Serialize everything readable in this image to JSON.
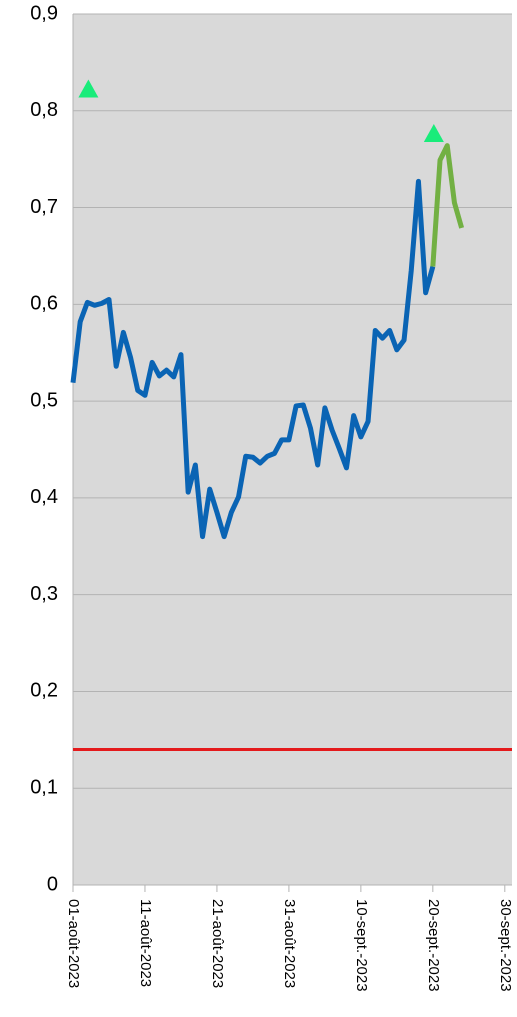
{
  "chart_data": {
    "type": "line",
    "x": [
      "2023-08-01",
      "2023-08-02",
      "2023-08-03",
      "2023-08-04",
      "2023-08-05",
      "2023-08-06",
      "2023-08-07",
      "2023-08-08",
      "2023-08-09",
      "2023-08-10",
      "2023-08-11",
      "2023-08-12",
      "2023-08-13",
      "2023-08-14",
      "2023-08-15",
      "2023-08-16",
      "2023-08-17",
      "2023-08-18",
      "2023-08-19",
      "2023-08-20",
      "2023-08-21",
      "2023-08-22",
      "2023-08-23",
      "2023-08-24",
      "2023-08-25",
      "2023-08-26",
      "2023-08-27",
      "2023-08-28",
      "2023-08-29",
      "2023-08-30",
      "2023-08-31",
      "2023-09-01",
      "2023-09-02",
      "2023-09-03",
      "2023-09-04",
      "2023-09-05",
      "2023-09-06",
      "2023-09-07",
      "2023-09-08",
      "2023-09-09",
      "2023-09-10",
      "2023-09-11",
      "2023-09-12",
      "2023-09-13",
      "2023-09-14",
      "2023-09-15",
      "2023-09-16",
      "2023-09-17",
      "2023-09-18",
      "2023-09-19",
      "2023-09-20",
      "2023-09-21",
      "2023-09-22",
      "2023-09-23",
      "2023-09-24"
    ],
    "series": [
      {
        "type": "line",
        "color": "#0a64b4",
        "values": [
          0.519,
          0.582,
          0.602,
          0.599,
          0.601,
          0.605,
          0.536,
          0.571,
          0.545,
          0.511,
          0.506,
          0.54,
          0.526,
          0.532,
          0.525,
          0.548,
          0.406,
          0.434,
          0.36,
          0.409,
          0.385,
          0.36,
          0.385,
          0.401,
          0.443,
          0.442,
          0.436,
          0.443,
          0.446,
          0.46,
          0.46,
          0.495,
          0.496,
          0.472,
          0.434,
          0.493,
          0.47,
          0.451,
          0.431,
          0.485,
          0.463,
          0.479,
          0.573,
          0.565,
          0.573,
          0.553,
          0.563,
          0.635,
          0.727,
          0.612,
          0.639,
          null,
          null,
          null,
          null
        ]
      },
      {
        "type": "line",
        "color": "#72b043",
        "values": [
          null,
          null,
          null,
          null,
          null,
          null,
          null,
          null,
          null,
          null,
          null,
          null,
          null,
          null,
          null,
          null,
          null,
          null,
          null,
          null,
          null,
          null,
          null,
          null,
          null,
          null,
          null,
          null,
          null,
          null,
          null,
          null,
          null,
          null,
          null,
          null,
          null,
          null,
          null,
          null,
          null,
          null,
          null,
          null,
          null,
          null,
          null,
          null,
          null,
          null,
          0.639,
          0.749,
          0.764,
          0.705,
          0.679
        ]
      },
      {
        "type": "scatter",
        "marker": "triangle",
        "color": "#19ec7a",
        "values": [
          null,
          null,
          0.822,
          null,
          null,
          null,
          null,
          null,
          null,
          null,
          null,
          null,
          null,
          null,
          null,
          null,
          null,
          null,
          null,
          null,
          null,
          null,
          null,
          null,
          null,
          null,
          null,
          null,
          null,
          null,
          null,
          null,
          null,
          null,
          null,
          null,
          null,
          null,
          null,
          null,
          null,
          null,
          null,
          null,
          null,
          null,
          null,
          null,
          null,
          null,
          0.776,
          null,
          null,
          null,
          null
        ]
      }
    ],
    "hline": {
      "value": 0.14,
      "color": "#e41a1c"
    },
    "xlim": [
      "2023-08-01",
      "2023-10-01"
    ],
    "xticks": [
      {
        "value": "2023-08-01",
        "label": "01-août-2023"
      },
      {
        "value": "2023-08-11",
        "label": "11-août-2023"
      },
      {
        "value": "2023-08-21",
        "label": "21-août-2023"
      },
      {
        "value": "2023-08-31",
        "label": "31-août-2023"
      },
      {
        "value": "2023-09-10",
        "label": "10-sept.-2023"
      },
      {
        "value": "2023-09-20",
        "label": "20-sept.-2023"
      },
      {
        "value": "2023-09-30",
        "label": "30-sept.-2023"
      }
    ],
    "ylim": [
      0,
      0.9
    ],
    "yticks": [
      0,
      {
        "value": 0.1,
        "label": "0,1"
      },
      {
        "value": 0.2,
        "label": "0,2"
      },
      {
        "value": 0.3,
        "label": "0,3"
      },
      {
        "value": 0.4,
        "label": "0,4"
      },
      {
        "value": 0.5,
        "label": "0,5"
      },
      {
        "value": 0.6,
        "label": "0,6"
      },
      {
        "value": 0.7,
        "label": "0,7"
      },
      {
        "value": 0.8,
        "label": "0,8"
      },
      {
        "value": 0.9,
        "label": "0,9"
      }
    ],
    "grid": true
  }
}
